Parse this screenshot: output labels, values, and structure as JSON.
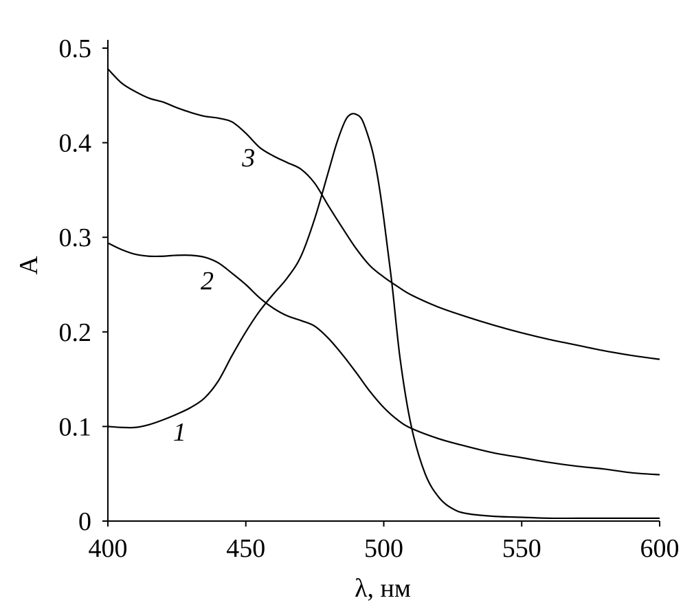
{
  "chart_data": {
    "type": "line",
    "xlabel": "λ, нм",
    "ylabel": "A",
    "xlim": [
      400,
      600
    ],
    "ylim": [
      0,
      0.5
    ],
    "xticks": [
      "400",
      "450",
      "500",
      "550",
      "600"
    ],
    "yticks": [
      "0",
      "0.1",
      "0.2",
      "0.3",
      "0.4",
      "0.5"
    ],
    "grid": false,
    "series": [
      {
        "name": "1",
        "x": [
          400,
          405,
          410,
          415,
          420,
          425,
          430,
          435,
          440,
          445,
          450,
          455,
          460,
          465,
          470,
          475,
          480,
          483,
          486,
          488,
          490,
          492,
          494,
          496,
          498,
          500,
          503,
          506,
          510,
          515,
          520,
          525,
          530,
          540,
          550,
          560,
          570,
          580,
          590,
          600
        ],
        "y": [
          0.1,
          0.099,
          0.099,
          0.102,
          0.107,
          0.113,
          0.12,
          0.13,
          0.148,
          0.175,
          0.2,
          0.222,
          0.24,
          0.257,
          0.28,
          0.32,
          0.37,
          0.4,
          0.423,
          0.43,
          0.43,
          0.425,
          0.41,
          0.39,
          0.36,
          0.32,
          0.25,
          0.17,
          0.1,
          0.05,
          0.025,
          0.013,
          0.008,
          0.005,
          0.004,
          0.003,
          0.003,
          0.003,
          0.003,
          0.003
        ]
      },
      {
        "name": "2",
        "x": [
          400,
          405,
          410,
          415,
          420,
          425,
          430,
          435,
          440,
          445,
          450,
          455,
          460,
          465,
          470,
          475,
          480,
          485,
          490,
          495,
          500,
          505,
          510,
          520,
          530,
          540,
          550,
          560,
          570,
          580,
          590,
          600
        ],
        "y": [
          0.294,
          0.287,
          0.282,
          0.28,
          0.28,
          0.281,
          0.281,
          0.279,
          0.273,
          0.262,
          0.25,
          0.236,
          0.225,
          0.217,
          0.212,
          0.206,
          0.193,
          0.176,
          0.157,
          0.137,
          0.12,
          0.107,
          0.098,
          0.087,
          0.079,
          0.072,
          0.067,
          0.062,
          0.058,
          0.055,
          0.051,
          0.049
        ]
      },
      {
        "name": "3",
        "x": [
          400,
          405,
          410,
          415,
          420,
          425,
          430,
          435,
          440,
          445,
          450,
          455,
          460,
          465,
          470,
          475,
          480,
          485,
          490,
          495,
          500,
          505,
          510,
          520,
          530,
          540,
          550,
          560,
          570,
          580,
          590,
          600
        ],
        "y": [
          0.478,
          0.463,
          0.454,
          0.447,
          0.443,
          0.437,
          0.432,
          0.428,
          0.426,
          0.422,
          0.41,
          0.395,
          0.386,
          0.379,
          0.372,
          0.357,
          0.333,
          0.31,
          0.288,
          0.27,
          0.258,
          0.248,
          0.239,
          0.226,
          0.216,
          0.207,
          0.199,
          0.192,
          0.186,
          0.18,
          0.175,
          0.171
        ]
      }
    ]
  }
}
